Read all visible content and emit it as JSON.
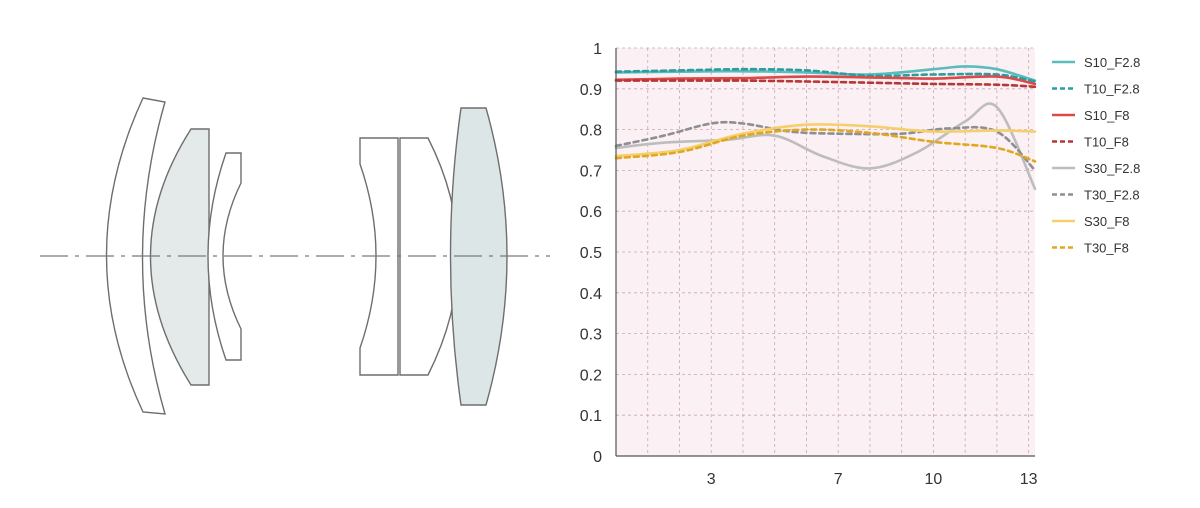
{
  "lens_diagram": {
    "elements": [
      "meniscus-front",
      "meniscus-cemented-grey",
      "meniscus-small",
      "biconcave",
      "biconvex",
      "plano-convex-grey"
    ]
  },
  "colors": {
    "plot_background": "#fbf0f3",
    "grid": "#c9a9b2",
    "axis": "#555555"
  },
  "chart_data": {
    "type": "line",
    "title": "",
    "xlabel": "",
    "ylabel": "",
    "xlim": [
      0,
      13.2
    ],
    "ylim": [
      0,
      1
    ],
    "x_ticks": [
      3,
      7,
      10,
      13
    ],
    "x_tick_labels": [
      "3",
      "7",
      "10",
      "13"
    ],
    "y_ticks": [
      0,
      0.1,
      0.2,
      0.3,
      0.4,
      0.5,
      0.6,
      0.7,
      0.8,
      0.9,
      1
    ],
    "y_tick_labels": [
      "0",
      "0.1",
      "0.2",
      "0.3",
      "0.4",
      "0.5",
      "0.6",
      "0.7",
      "0.8",
      "0.9",
      "1"
    ],
    "grid": true,
    "legend_position": "right",
    "series": [
      {
        "name": "S10_F2.8",
        "color": "#5bbcbc",
        "dash": false,
        "x": [
          0,
          2,
          4,
          6,
          8,
          10,
          11,
          12,
          13.2
        ],
        "y": [
          0.94,
          0.942,
          0.943,
          0.94,
          0.935,
          0.948,
          0.955,
          0.948,
          0.92
        ]
      },
      {
        "name": "T10_F2.8",
        "color": "#2a9e9e",
        "dash": true,
        "x": [
          0,
          2,
          4,
          6,
          8,
          10,
          12,
          13.2
        ],
        "y": [
          0.942,
          0.945,
          0.948,
          0.945,
          0.932,
          0.935,
          0.935,
          0.918
        ]
      },
      {
        "name": "S10_F8",
        "color": "#d94a4a",
        "dash": false,
        "x": [
          0,
          2,
          4,
          6,
          8,
          10,
          12,
          13.2
        ],
        "y": [
          0.922,
          0.925,
          0.926,
          0.93,
          0.928,
          0.925,
          0.93,
          0.912
        ]
      },
      {
        "name": "T10_F8",
        "color": "#b83636",
        "dash": true,
        "x": [
          0,
          2,
          4,
          6,
          8,
          10,
          12,
          13.2
        ],
        "y": [
          0.92,
          0.92,
          0.92,
          0.918,
          0.915,
          0.912,
          0.91,
          0.905
        ]
      },
      {
        "name": "S30_F2.8",
        "color": "#bdbdbd",
        "dash": false,
        "x": [
          0,
          1.5,
          3.5,
          5,
          6.5,
          8,
          9.5,
          11,
          12,
          13.2
        ],
        "y": [
          0.755,
          0.768,
          0.775,
          0.785,
          0.735,
          0.705,
          0.745,
          0.82,
          0.855,
          0.655
        ]
      },
      {
        "name": "T30_F2.8",
        "color": "#8e8e95",
        "dash": true,
        "x": [
          0,
          1.5,
          3,
          4,
          5.5,
          7,
          9,
          10.5,
          12,
          13.2
        ],
        "y": [
          0.76,
          0.785,
          0.815,
          0.815,
          0.795,
          0.79,
          0.79,
          0.803,
          0.795,
          0.7
        ]
      },
      {
        "name": "S30_F8",
        "color": "#f5cf6a",
        "dash": false,
        "x": [
          0,
          2,
          4,
          6,
          8,
          10,
          12,
          13.2
        ],
        "y": [
          0.735,
          0.75,
          0.79,
          0.812,
          0.808,
          0.795,
          0.798,
          0.795
        ]
      },
      {
        "name": "T30_F8",
        "color": "#e0a820",
        "dash": true,
        "x": [
          0,
          2,
          4,
          6,
          8,
          10,
          12,
          13.2
        ],
        "y": [
          0.73,
          0.745,
          0.785,
          0.8,
          0.792,
          0.77,
          0.755,
          0.722
        ]
      }
    ]
  }
}
